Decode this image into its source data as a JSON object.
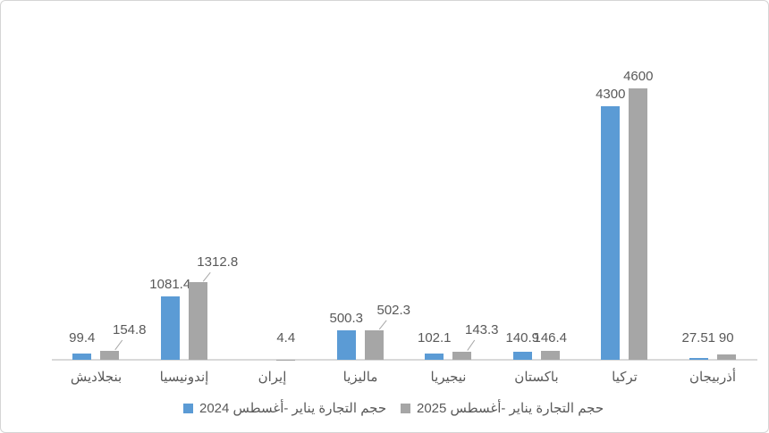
{
  "chart_data": {
    "type": "bar",
    "title": "",
    "xlabel": "",
    "ylabel": "",
    "ylim": [
      0,
      4600
    ],
    "grid": false,
    "y_axis_visible": false,
    "legend_position": "bottom",
    "axis_color": "#d9d9d9",
    "text_color": "#595959",
    "categories": [
      "بنجلاديش",
      "إندونيسيا",
      "إيران",
      "ماليزيا",
      "نيجيريا",
      "باكستان",
      "تركيا",
      "أذربيجان"
    ],
    "series": [
      {
        "name": "حجم التجارة  يناير -أغسطس 2024",
        "color": "#5B9BD5",
        "values": [
          99.4,
          1081.4,
          null,
          500.3,
          102.1,
          140.9,
          4300,
          27.51
        ],
        "data_labels": [
          "99.4",
          "1081.4",
          "",
          "500.3",
          "102.1",
          "140.9",
          "4300",
          "27.51"
        ],
        "label_leader_lines": [
          false,
          false,
          false,
          false,
          false,
          false,
          false,
          false
        ]
      },
      {
        "name": "حجم التجارة  يناير -أغسطس 2025",
        "color": "#A6A6A6",
        "values": [
          154.8,
          1312.8,
          4.4,
          502.3,
          143.3,
          146.4,
          4600,
          90
        ],
        "data_labels": [
          "154.8",
          "1312.8",
          "4.4",
          "502.3",
          "143.3",
          "146.4",
          "4600",
          "90"
        ],
        "label_leader_lines": [
          true,
          true,
          false,
          true,
          true,
          false,
          false,
          false
        ]
      }
    ]
  }
}
